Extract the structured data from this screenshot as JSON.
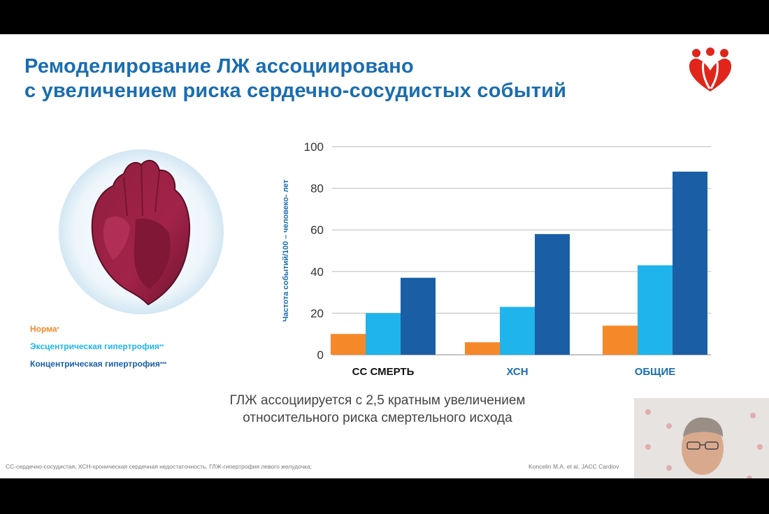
{
  "slide": {
    "title_line1": "Ремоделирование ЛЖ ассоциировано",
    "title_line2": "с увеличением риска сердечно-сосудистых событий",
    "legend": [
      {
        "label": "Норма",
        "stars": "*",
        "color": "#f5892a"
      },
      {
        "label": "Эксцентрическая гипертрофия",
        "stars": "**",
        "color": "#1fb4ec"
      },
      {
        "label": "Концентрическая гипертрофия",
        "stars": "***",
        "color": "#1a5fa6"
      }
    ],
    "caption_line1": "ГЛЖ ассоциируется с 2,5 кратным увеличением",
    "caption_line2": "относительного риска смертельного исхода",
    "footnote": "СС-сердечно-сосудистая, ХСН-хроническая сердечная недостаточность, ГЛЖ-гипертрофия левого желудочка;",
    "reference": "Koncelin M.A. et al. JACC Cardiov"
  },
  "colors": {
    "title": "#1a6db0",
    "norm": "#f5892a",
    "eccentric": "#1fb4ec",
    "concentric": "#1a5fa6",
    "logo": "#e0251b"
  },
  "chart_data": {
    "type": "bar",
    "categories": [
      "СС СМЕРТЬ",
      "ХСН",
      "ОБЩИЕ"
    ],
    "series": [
      {
        "name": "Норма",
        "values": [
          10,
          6,
          14
        ]
      },
      {
        "name": "Эксцентрическая гипертрофия",
        "values": [
          20,
          23,
          43
        ]
      },
      {
        "name": "Концентрическая гипертрофия",
        "values": [
          37,
          58,
          88
        ]
      }
    ],
    "title": "",
    "xlabel": "",
    "ylabel": "Частота событий/100 – человеко- лет",
    "ylim": [
      0,
      100
    ],
    "yticks": [
      0,
      20,
      40,
      60,
      80,
      100
    ],
    "grid": true,
    "legend_position": "left"
  }
}
